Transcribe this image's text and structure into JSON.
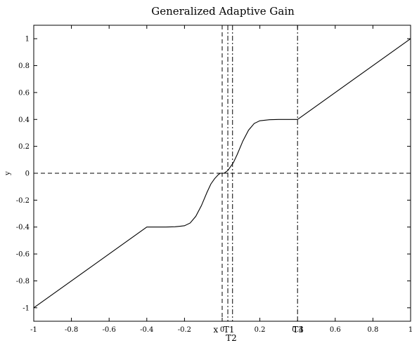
{
  "chart_data": {
    "type": "line",
    "title": "Generalized Adaptive Gain",
    "xlabel": "",
    "ylabel": "y",
    "xlim": [
      -1,
      1
    ],
    "ylim": [
      -1.1,
      1.1
    ],
    "xticks": [
      -1,
      -0.8,
      -0.6,
      -0.4,
      -0.2,
      0,
      0.2,
      0.4,
      0.6,
      0.8,
      1
    ],
    "xtick_labels": [
      "-1",
      "-0.8",
      "-0.6",
      "-0.4",
      "-0.2",
      "0",
      "0.2",
      "0.4",
      "0.6",
      "0.8",
      "1"
    ],
    "yticks": [
      -1,
      -0.8,
      -0.6,
      -0.4,
      -0.2,
      0,
      0.2,
      0.4,
      0.6,
      0.8,
      1
    ],
    "ytick_labels": [
      "-1",
      "-0.8",
      "-0.6",
      "-0.4",
      "-0.2",
      "0",
      "0.2",
      "0.4",
      "0.6",
      "0.8",
      "1"
    ],
    "grid": false,
    "series": [
      {
        "x": [
          -1,
          -0.4,
          -0.35,
          -0.3,
          -0.25,
          -0.2,
          -0.17,
          -0.14,
          -0.11,
          -0.08,
          -0.06,
          -0.04,
          -0.02,
          -0.01,
          0,
          0.01,
          0.02,
          0.03,
          0.04,
          0.06,
          0.08,
          0.11,
          0.14,
          0.17,
          0.2,
          0.25,
          0.3,
          0.35,
          0.4,
          1
        ],
        "y": [
          -1,
          -0.4,
          -0.4,
          -0.4,
          -0.398,
          -0.39,
          -0.37,
          -0.32,
          -0.24,
          -0.14,
          -0.08,
          -0.04,
          -0.01,
          0,
          0,
          0,
          0.01,
          0.02,
          0.04,
          0.08,
          0.14,
          0.24,
          0.32,
          0.37,
          0.39,
          0.398,
          0.4,
          0.4,
          0.4,
          1
        ],
        "style": "solid",
        "color": "#000000"
      }
    ],
    "reference_lines": [
      {
        "orientation": "horizontal",
        "value": 0,
        "style": "dashed",
        "color": "#000000"
      },
      {
        "orientation": "vertical",
        "value": 0,
        "style": "dashed",
        "color": "#000000"
      },
      {
        "orientation": "vertical",
        "value": 0.03,
        "style": "dash-dot",
        "color": "#000000"
      },
      {
        "orientation": "vertical",
        "value": 0.055,
        "style": "dash-dot",
        "color": "#000000"
      },
      {
        "orientation": "vertical",
        "value": 0.4,
        "style": "dash-dot",
        "color": "#000000"
      }
    ],
    "annotations": [
      {
        "text": "x",
        "x": -0.01,
        "row": "below-axis-1"
      },
      {
        "text": "T1",
        "x": 0.04,
        "row": "below-axis-1"
      },
      {
        "text": "T2",
        "x": 0.0,
        "row": "below-axis-2"
      },
      {
        "text": "T3",
        "x": 0.4,
        "row": "below-axis-1"
      }
    ]
  }
}
